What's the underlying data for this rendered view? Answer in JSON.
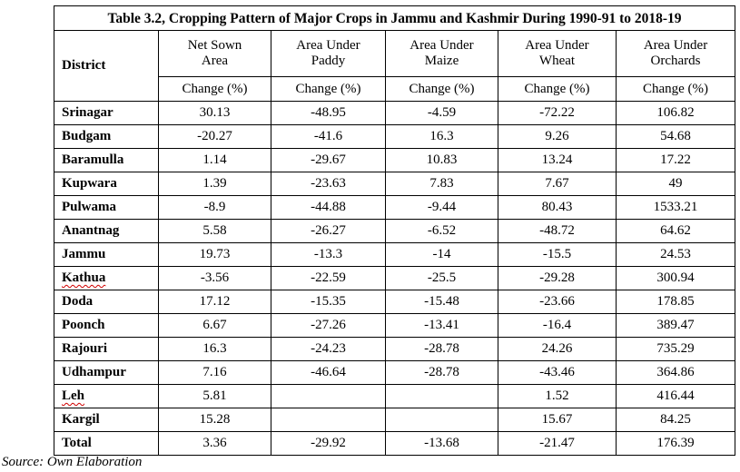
{
  "table": {
    "title": "Table 3.2, Cropping Pattern of Major Crops in Jammu and Kashmir During 1990-91 to 2018-19",
    "district_header": "District",
    "columns": [
      {
        "line1": "Net Sown",
        "line2": "Area",
        "unit": "Change (%)"
      },
      {
        "line1": "Area Under",
        "line2": "Paddy",
        "unit": "Change (%)"
      },
      {
        "line1": "Area Under",
        "line2": "Maize",
        "unit": "Change (%)"
      },
      {
        "line1": "Area Under",
        "line2": "Wheat",
        "unit": "Change (%)"
      },
      {
        "line1": "Area Under",
        "line2": "Orchards",
        "unit": "Change (%)"
      }
    ],
    "rows": [
      {
        "district": "Srinagar",
        "values": [
          "30.13",
          "-48.95",
          "-4.59",
          "-72.22",
          "106.82"
        ]
      },
      {
        "district": "Budgam",
        "values": [
          "-20.27",
          "-41.6",
          "16.3",
          "9.26",
          "54.68"
        ]
      },
      {
        "district": "Baramulla",
        "values": [
          "1.14",
          "-29.67",
          "10.83",
          "13.24",
          "17.22"
        ]
      },
      {
        "district": "Kupwara",
        "values": [
          "1.39",
          "-23.63",
          "7.83",
          "7.67",
          "49"
        ]
      },
      {
        "district": "Pulwama",
        "values": [
          "-8.9",
          "-44.88",
          "-9.44",
          "80.43",
          "1533.21"
        ]
      },
      {
        "district": "Anantnag",
        "values": [
          "5.58",
          "-26.27",
          "-6.52",
          "-48.72",
          "64.62"
        ]
      },
      {
        "district": "Jammu",
        "values": [
          "19.73",
          "-13.3",
          "-14",
          "-15.5",
          "24.53"
        ]
      },
      {
        "district": "Kathua",
        "values": [
          "-3.56",
          "-22.59",
          "-25.5",
          "-29.28",
          "300.94"
        ]
      },
      {
        "district": "Doda",
        "values": [
          "17.12",
          "-15.35",
          "-15.48",
          "-23.66",
          "178.85"
        ]
      },
      {
        "district": "Poonch",
        "values": [
          "6.67",
          "-27.26",
          "-13.41",
          "-16.4",
          "389.47"
        ]
      },
      {
        "district": "Rajouri",
        "values": [
          "16.3",
          "-24.23",
          "-28.78",
          "24.26",
          "735.29"
        ]
      },
      {
        "district": "Udhampur",
        "values": [
          "7.16",
          "-46.64",
          "-28.78",
          "-43.46",
          "364.86"
        ]
      },
      {
        "district": "Leh",
        "values": [
          "5.81",
          "",
          "",
          "1.52",
          "416.44"
        ]
      },
      {
        "district": "Kargil",
        "values": [
          "15.28",
          "",
          "",
          "15.67",
          "84.25"
        ]
      },
      {
        "district": "Total",
        "values": [
          "3.36",
          "-29.92",
          "-13.68",
          "-21.47",
          "176.39"
        ]
      }
    ]
  },
  "source_note": "Source: Own Elaboration"
}
